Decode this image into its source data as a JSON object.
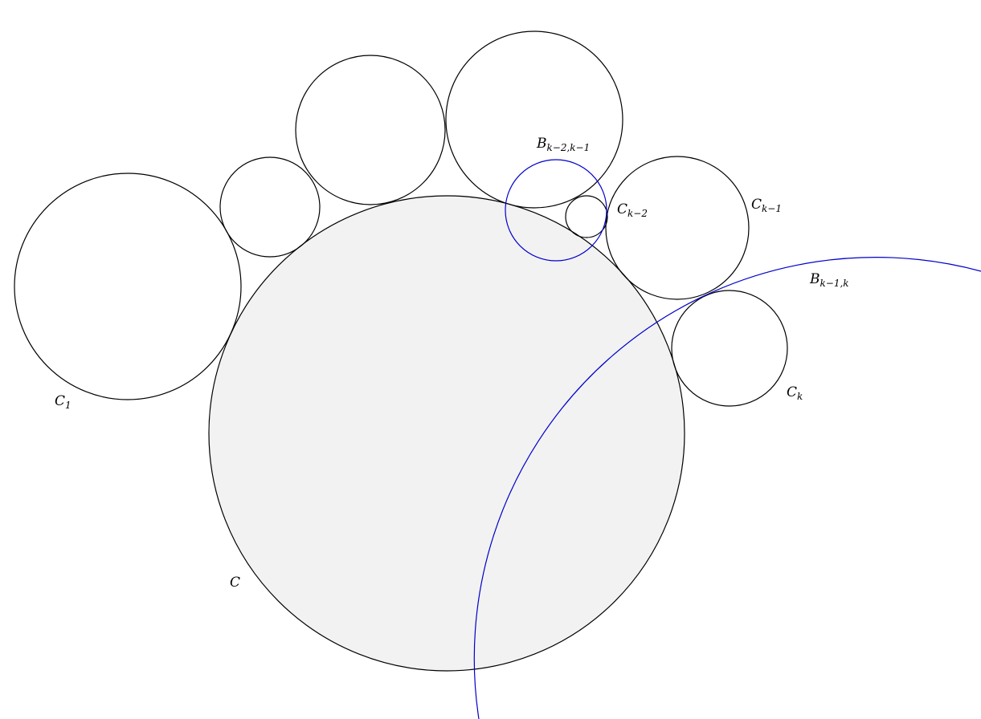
{
  "colors": {
    "background": "#ffffff",
    "circle_stroke": "#000000",
    "main_circle_fill": "#f2f2f2",
    "bounding_circle_stroke": "#0000cc"
  },
  "labels": {
    "c1": {
      "base": "C",
      "sub": "1"
    },
    "c": {
      "base": "C"
    },
    "c_k_minus_2": {
      "base": "C",
      "sub": "k−2"
    },
    "c_k_minus_1": {
      "base": "C",
      "sub": "k−1"
    },
    "c_k": {
      "base": "C",
      "sub": "k"
    },
    "b_k_minus_2_k_minus_1": {
      "base": "B",
      "sub": "k−2,k−1"
    },
    "b_k_minus_1_k": {
      "base": "B",
      "sub": "k−1,k"
    }
  }
}
